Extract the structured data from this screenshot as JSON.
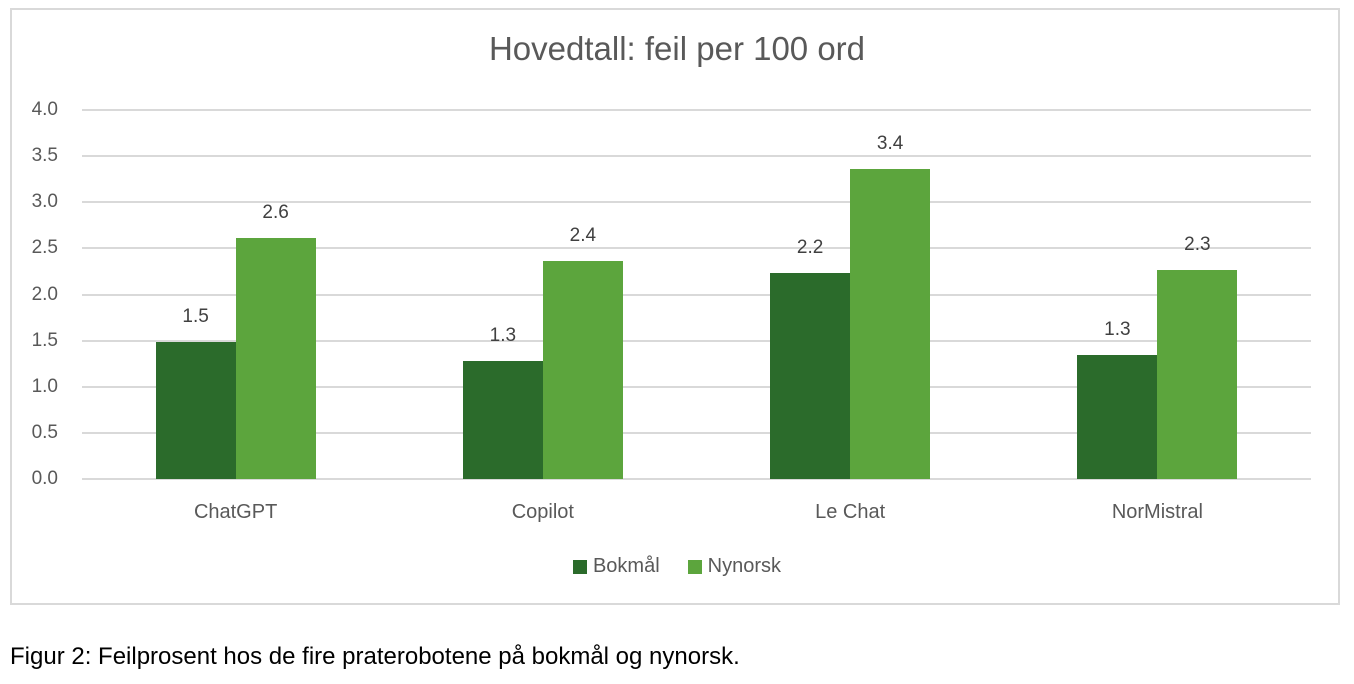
{
  "chart_data": {
    "type": "bar",
    "title": "Hovedtall: feil per 100 ord",
    "xlabel": "",
    "ylabel": "",
    "ylim": [
      0,
      4.0
    ],
    "yticks": [
      "0.0",
      "0.5",
      "1.0",
      "1.5",
      "2.0",
      "2.5",
      "3.0",
      "3.5",
      "4.0"
    ],
    "grid": true,
    "legend_position": "bottom",
    "categories": [
      "ChatGPT",
      "Copilot",
      "Le Chat",
      "NorMistral"
    ],
    "series": [
      {
        "name": "Bokmål",
        "color": "#2b6b2b",
        "values": [
          1.48,
          1.28,
          2.23,
          1.34
        ],
        "labels": [
          "1.5",
          "1.3",
          "2.2",
          "1.3"
        ]
      },
      {
        "name": "Nynorsk",
        "color": "#5ca53d",
        "values": [
          2.61,
          2.36,
          3.36,
          2.27
        ],
        "labels": [
          "2.6",
          "2.4",
          "3.4",
          "2.3"
        ]
      }
    ]
  },
  "caption": "Figur 2: Feilprosent hos de fire praterobotene på bokmål og nynorsk."
}
